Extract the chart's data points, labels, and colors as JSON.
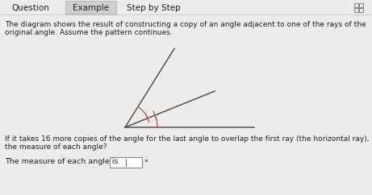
{
  "background_color": "#edecea",
  "tab_labels": [
    "Question",
    "Example",
    "Step by Step"
  ],
  "active_tab": "Example",
  "active_tab_bg": "#d0cfcd",
  "active_tab_fg": "#222222",
  "inactive_tab_fg": "#444444",
  "body_text_line1": "The diagram shows the result of constructing a copy of an angle adjacent to one of the rays of the",
  "body_text_line2": "original angle. Assume the pattern continues.",
  "question_text_line1": "If it takes 16 more copies of the angle for the last angle to overlap the first ray (the horizontal ray), what is",
  "question_text_line2": "the measure of each angle?",
  "answer_text": "The measure of each angle is",
  "answer_box_text": "?",
  "degree_symbol": "°",
  "ray_color": "#555050",
  "arc_color": "#b06060",
  "font_size_body": 6.5,
  "font_size_tab": 7.5,
  "font_size_answer": 6.8
}
